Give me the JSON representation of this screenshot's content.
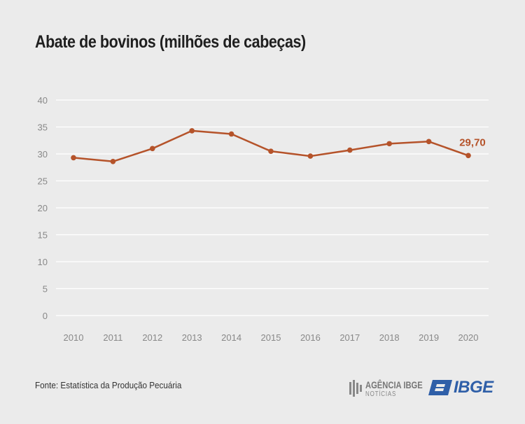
{
  "header": {
    "title": "Abate de bovinos (milhões de cabeças)"
  },
  "footer": {
    "source": "Fonte: Estatística da Produção Pecuária",
    "agencia_brand": "AGÊNCIA IBGE",
    "agencia_sub": "NOTÍCIAS",
    "ibge_brand": "IBGE"
  },
  "chart_data": {
    "type": "line",
    "title": "Abate de bovinos (milhões de cabeças)",
    "xlabel": "",
    "ylabel": "",
    "x": [
      "2010",
      "2011",
      "2012",
      "2013",
      "2014",
      "2015",
      "2016",
      "2017",
      "2018",
      "2019",
      "2020"
    ],
    "series": [
      {
        "values": [
          29.3,
          28.6,
          31.0,
          34.3,
          33.7,
          30.5,
          29.6,
          30.7,
          31.9,
          32.3,
          29.7
        ]
      }
    ],
    "ylim": [
      0,
      40
    ],
    "yticks": [
      "0",
      "5",
      "10",
      "15",
      "20",
      "25",
      "30",
      "35",
      "40"
    ],
    "grid": true,
    "annotations": [
      {
        "x": "2020",
        "label": "29,70"
      }
    ],
    "colors": {
      "line": "#b5532a",
      "grid": "#ffffff",
      "tick": "#888888"
    }
  }
}
